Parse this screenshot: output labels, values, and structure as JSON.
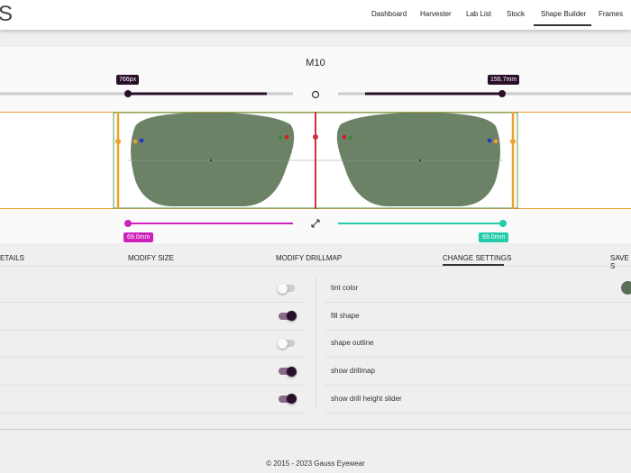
{
  "nav": {
    "logo": "S",
    "items": [
      "Dashboard",
      "Harvester",
      "Lab List",
      "Stock",
      "Shape Builder",
      "Frames"
    ],
    "active": 4
  },
  "builder": {
    "title": "M10",
    "width_label": "766px",
    "size_label": "156.7mm",
    "left_height_label": "69.0mm",
    "right_height_label": "69.0mm"
  },
  "tabs": {
    "items": [
      "ETAILS",
      "MODIFY SIZE",
      "MODIFY DRILLMAP",
      "CHANGE SETTINGS",
      "SAVE S"
    ],
    "active": 3
  },
  "settings": {
    "toggles": [
      false,
      true,
      false,
      true,
      true
    ],
    "labels": [
      "tint color",
      "fill shape",
      "shape outline",
      "show drillmap",
      "show drill height slider"
    ]
  },
  "footer": {
    "text": "© 2015 - 2023 Gauss Eyewear"
  }
}
